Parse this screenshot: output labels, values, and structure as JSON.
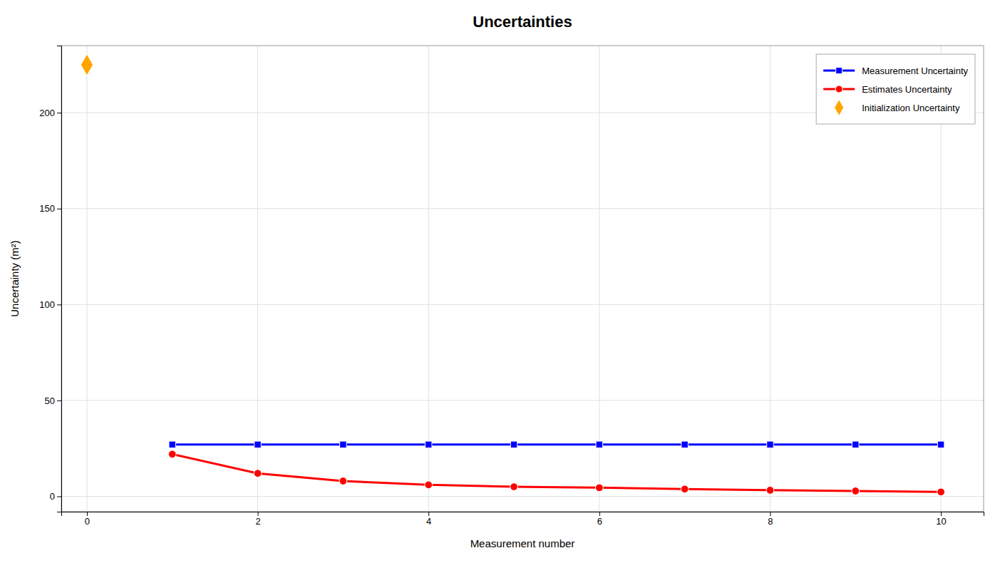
{
  "chart_data": {
    "type": "line",
    "title": "Uncertainties",
    "xlabel": "Measurement number",
    "ylabel": "Uncertainty (m²)",
    "xlim": [
      -0.3,
      10.5
    ],
    "ylim": [
      -8,
      235
    ],
    "xticks": [
      0,
      2,
      4,
      6,
      8,
      10
    ],
    "yticks": [
      0,
      50,
      100,
      150,
      200
    ],
    "grid": true,
    "legend": "upper right",
    "series": [
      {
        "name": "Measurement Uncertainty",
        "type": "line",
        "color": "#0000ff",
        "marker": "square",
        "x": [
          1,
          2,
          3,
          4,
          5,
          6,
          7,
          8,
          9,
          10
        ],
        "values": [
          27.0,
          27.0,
          27.0,
          27.0,
          27.0,
          27.0,
          27.0,
          27.0,
          27.0,
          27.0
        ]
      },
      {
        "name": "Estimates Uncertainty",
        "type": "line",
        "color": "#ff0000",
        "marker": "circle",
        "x": [
          1,
          2,
          3,
          4,
          5,
          6,
          7,
          8,
          9,
          10
        ],
        "values": [
          22.0,
          12.0,
          8.0,
          6.0,
          5.0,
          4.5,
          3.8,
          3.2,
          2.8,
          2.3
        ]
      },
      {
        "name": "Initialization Uncertainty",
        "type": "scatter",
        "color": "#ffa500",
        "marker": "diamond",
        "x": [
          0
        ],
        "values": [
          225
        ]
      }
    ]
  }
}
